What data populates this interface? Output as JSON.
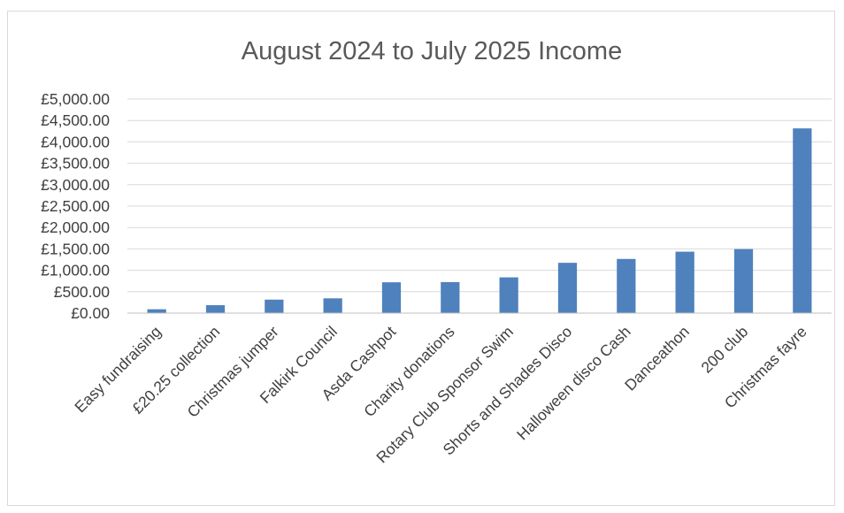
{
  "chart_data": {
    "type": "bar",
    "title": "August 2024 to July 2025 Income",
    "xlabel": "",
    "ylabel": "",
    "categories": [
      "Easy fundraising",
      "£20.25 collection",
      "Christmas jumper",
      "Falkirk Council",
      "Asda Cashpot",
      "Charity donations",
      "Rotary Club Sponsor Swim",
      "Shorts and Shades Disco",
      "Halloween disco Cash",
      "Danceathon",
      "200 club",
      "Christmas fayre"
    ],
    "values": [
      90,
      185,
      315,
      345,
      720,
      725,
      835,
      1175,
      1265,
      1435,
      1495,
      4315
    ],
    "ylim": [
      0,
      5000
    ],
    "yticks": [
      0,
      500,
      1000,
      1500,
      2000,
      2500,
      3000,
      3500,
      4000,
      4500,
      5000
    ],
    "ytick_labels": [
      "£0.00",
      "£500.00",
      "£1,000.00",
      "£1,500.00",
      "£2,000.00",
      "£2,500.00",
      "£3,000.00",
      "£3,500.00",
      "£4,000.00",
      "£4,500.00",
      "£5,000.00"
    ],
    "bar_color": "#4f81bd",
    "grid": true,
    "legend": "none"
  }
}
